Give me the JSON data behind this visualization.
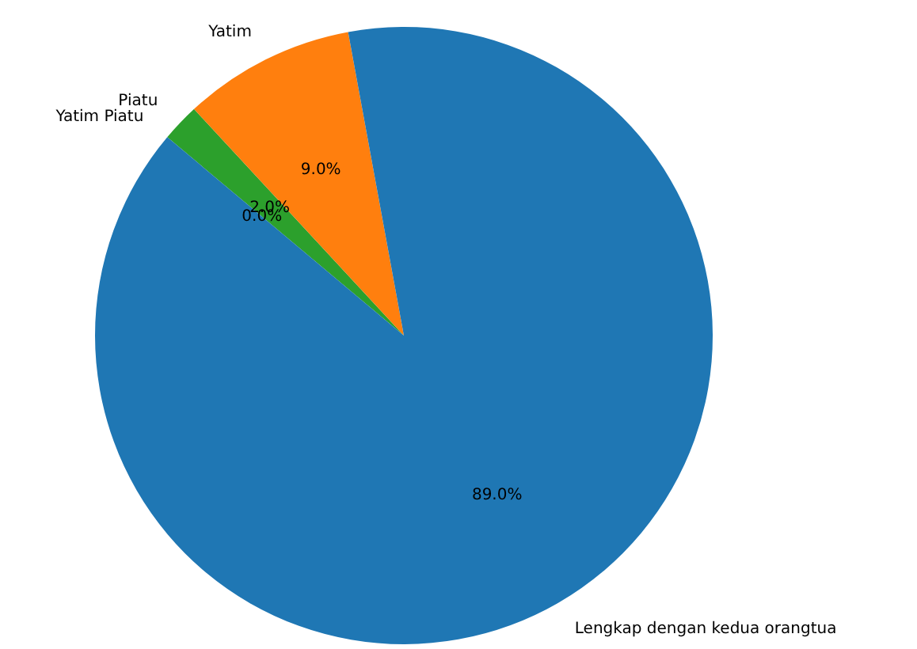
{
  "chart_data": {
    "type": "pie",
    "categories": [
      "Lengkap dengan kedua orangtua",
      "Yatim",
      "Piatu",
      "Yatim Piatu"
    ],
    "values": [
      89,
      9,
      2,
      0
    ],
    "colors": [
      "#1f77b4",
      "#ff7f0e",
      "#2ca02c",
      "#d62728"
    ],
    "value_labels": [
      "89.0%",
      "9.0%",
      "2.0%",
      "0.0%"
    ],
    "legend": false
  }
}
